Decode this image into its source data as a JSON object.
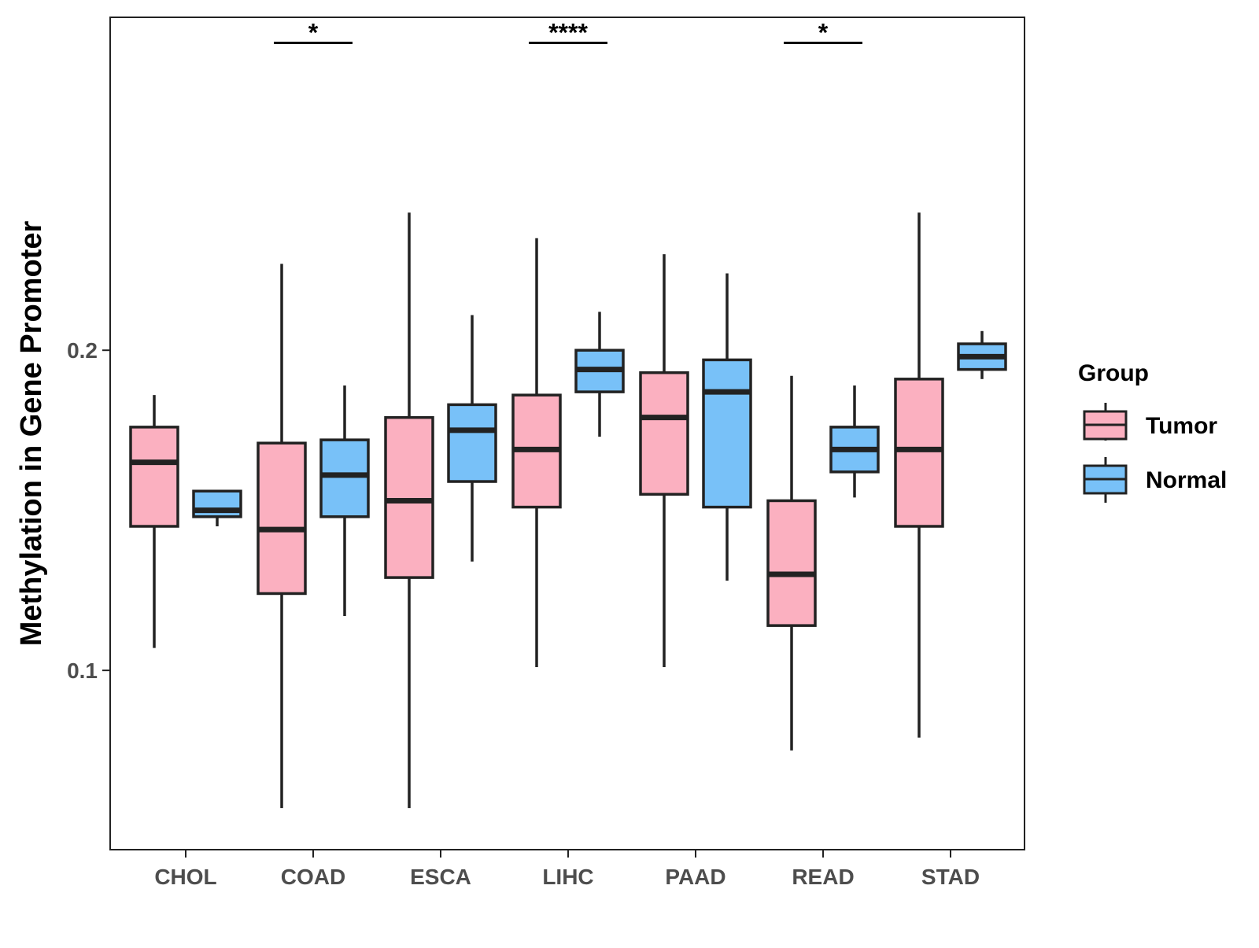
{
  "chart_data": {
    "type": "boxplot",
    "title": "",
    "xlabel": "",
    "ylabel": "Methylation in Gene Promoter",
    "ylim": [
      0.044,
      0.304
    ],
    "yticks": [
      0.1,
      0.2
    ],
    "ytick_labels": [
      "0.1",
      "0.2"
    ],
    "categories": [
      "CHOL",
      "COAD",
      "ESCA",
      "LIHC",
      "PAAD",
      "READ",
      "STAD"
    ],
    "legend": {
      "title": "Group",
      "placement": "right",
      "entries": [
        {
          "name": "Tumor",
          "color": "#FBB0C0"
        },
        {
          "name": "Normal",
          "color": "#78C1F8"
        }
      ]
    },
    "series": [
      {
        "name": "Tumor",
        "color": "#FBB0C0",
        "boxes": [
          {
            "category": "CHOL",
            "whisker_low": 0.107,
            "q1": 0.145,
            "median": 0.165,
            "q3": 0.176,
            "whisker_high": 0.186
          },
          {
            "category": "COAD",
            "whisker_low": 0.057,
            "q1": 0.124,
            "median": 0.144,
            "q3": 0.171,
            "whisker_high": 0.227
          },
          {
            "category": "ESCA",
            "whisker_low": 0.057,
            "q1": 0.129,
            "median": 0.153,
            "q3": 0.179,
            "whisker_high": 0.243
          },
          {
            "category": "LIHC",
            "whisker_low": 0.101,
            "q1": 0.151,
            "median": 0.169,
            "q3": 0.186,
            "whisker_high": 0.235
          },
          {
            "category": "PAAD",
            "whisker_low": 0.101,
            "q1": 0.155,
            "median": 0.179,
            "q3": 0.193,
            "whisker_high": 0.23
          },
          {
            "category": "READ",
            "whisker_low": 0.075,
            "q1": 0.114,
            "median": 0.13,
            "q3": 0.153,
            "whisker_high": 0.192
          },
          {
            "category": "STAD",
            "whisker_low": 0.079,
            "q1": 0.145,
            "median": 0.169,
            "q3": 0.191,
            "whisker_high": 0.243
          }
        ]
      },
      {
        "name": "Normal",
        "color": "#78C1F8",
        "boxes": [
          {
            "category": "CHOL",
            "whisker_low": 0.145,
            "q1": 0.148,
            "median": 0.15,
            "q3": 0.156,
            "whisker_high": 0.156
          },
          {
            "category": "COAD",
            "whisker_low": 0.117,
            "q1": 0.148,
            "median": 0.161,
            "q3": 0.172,
            "whisker_high": 0.189
          },
          {
            "category": "ESCA",
            "whisker_low": 0.134,
            "q1": 0.159,
            "median": 0.175,
            "q3": 0.183,
            "whisker_high": 0.211
          },
          {
            "category": "LIHC",
            "whisker_low": 0.173,
            "q1": 0.187,
            "median": 0.194,
            "q3": 0.2,
            "whisker_high": 0.212
          },
          {
            "category": "PAAD",
            "whisker_low": 0.128,
            "q1": 0.151,
            "median": 0.187,
            "q3": 0.197,
            "whisker_high": 0.224
          },
          {
            "category": "READ",
            "whisker_low": 0.154,
            "q1": 0.162,
            "median": 0.169,
            "q3": 0.176,
            "whisker_high": 0.189
          },
          {
            "category": "STAD",
            "whisker_low": 0.191,
            "q1": 0.194,
            "median": 0.198,
            "q3": 0.202,
            "whisker_high": 0.206
          }
        ]
      }
    ],
    "annotations": [
      {
        "category": "COAD",
        "label": "*",
        "y": 0.296
      },
      {
        "category": "LIHC",
        "label": "****",
        "y": 0.296
      },
      {
        "category": "READ",
        "label": "*",
        "y": 0.296
      }
    ],
    "grid": false
  }
}
